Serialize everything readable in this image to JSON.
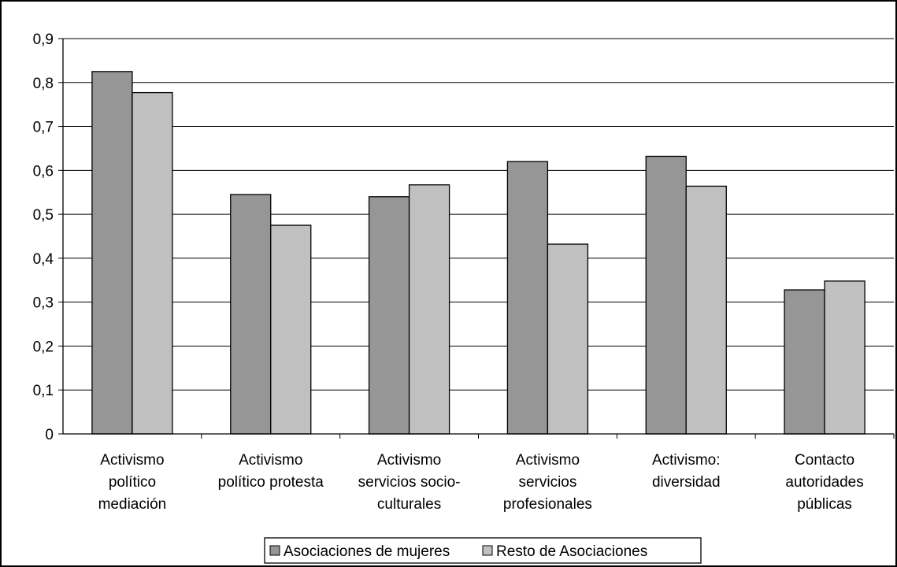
{
  "chart_data": {
    "type": "bar",
    "title": "",
    "xlabel": "",
    "ylabel": "",
    "ylim": [
      0,
      0.9
    ],
    "y_ticks": [
      "0",
      "0,1",
      "0,2",
      "0,3",
      "0,4",
      "0,5",
      "0,6",
      "0,7",
      "0,8",
      "0,9"
    ],
    "grid": true,
    "legend_position": "bottom",
    "categories": [
      [
        "Activismo",
        "político",
        "mediación"
      ],
      [
        "Activismo",
        "político protesta"
      ],
      [
        "Activismo",
        "servicios socio-",
        "culturales"
      ],
      [
        "Activismo",
        "servicios",
        "profesionales"
      ],
      [
        "Activismo:",
        "diversidad"
      ],
      [
        "Contacto",
        "autoridades",
        "públicas"
      ]
    ],
    "series": [
      {
        "name": "Asociaciones de mujeres",
        "color": "#969696",
        "values": [
          0.825,
          0.545,
          0.54,
          0.62,
          0.632,
          0.328
        ]
      },
      {
        "name": "Resto de Asociaciones",
        "color": "#c0c0c0",
        "values": [
          0.777,
          0.475,
          0.567,
          0.432,
          0.564,
          0.348
        ]
      }
    ]
  }
}
